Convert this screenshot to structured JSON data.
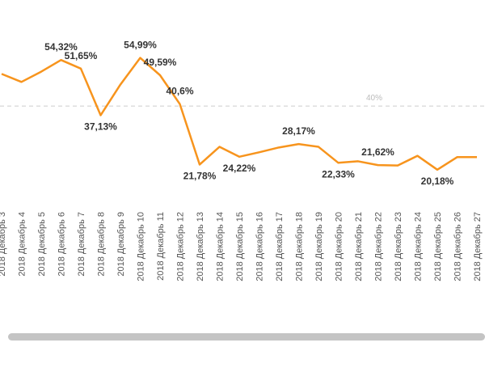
{
  "chart_data": {
    "type": "line",
    "categories": [
      "2018 Декабрь 3",
      "2018 Декабрь 4",
      "2018 Декабрь 5",
      "2018 Декабрь 6",
      "2018 Декабрь 7",
      "2018 Декабрь 8",
      "2018 Декабрь 9",
      "2018 Декабрь 10",
      "2018 Декабрь 11",
      "2018 Декабрь 12",
      "2018 Декабрь 13",
      "2018 Декабрь 14",
      "2018 Декабрь 15",
      "2018 Декабрь 16",
      "2018 Декабрь 17",
      "2018 Декабрь 18",
      "2018 Декабрь 19",
      "2018 Декабрь 20",
      "2018 Декабрь 21",
      "2018 Декабрь 22",
      "2018 Декабрь 23",
      "2018 Декабрь 24",
      "2018 Декабрь 25",
      "2018 Декабрь 26",
      "2018 Декабрь 27"
    ],
    "values": [
      50,
      47.5,
      50.7,
      54.32,
      51.65,
      37.13,
      46.7,
      54.99,
      49.59,
      40.6,
      21.78,
      27.3,
      24.22,
      25.6,
      27.1,
      28.17,
      27.3,
      22.33,
      22.8,
      21.62,
      21.5,
      24.5,
      20.18,
      24.1,
      24.1
    ],
    "value_labels": [
      null,
      null,
      null,
      "54,32%",
      "51,65%",
      "37,13%",
      null,
      "54,99%",
      "49,59%",
      "40,6%",
      "21,78%",
      null,
      "24,22%",
      null,
      null,
      "28,17%",
      null,
      "22,33%",
      null,
      "21,62%",
      null,
      null,
      "20,18%",
      null,
      null
    ],
    "color": "#f7941d",
    "ylim": [
      0,
      73
    ],
    "reference": {
      "value": 40,
      "label": "40%"
    }
  }
}
